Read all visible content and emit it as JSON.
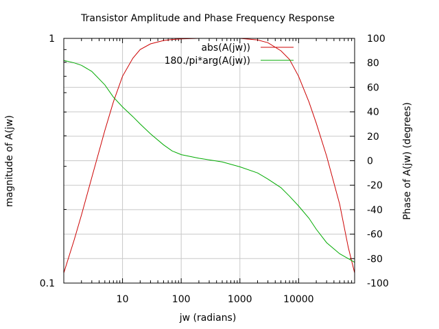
{
  "chart_data": {
    "type": "line",
    "title": "Transistor Amplitude and Phase Frequency Response",
    "xlabel": "jw (radians)",
    "ylabel": "magnitude of A(jw)",
    "y2label": "Phase of A(jw) (degrees)",
    "xscale": "log",
    "yscale": "log",
    "xlim": [
      1,
      90000
    ],
    "ylim": [
      0.1,
      1
    ],
    "y2lim": [
      -100,
      100
    ],
    "grid": true,
    "legend_position": "top-right",
    "x_ticks": [
      {
        "value": 10,
        "label": "10"
      },
      {
        "value": 100,
        "label": "100"
      },
      {
        "value": 1000,
        "label": "1000"
      },
      {
        "value": 10000,
        "label": "10000"
      }
    ],
    "y_ticks": [
      {
        "value": 0.1,
        "label": "0.1"
      },
      {
        "value": 1,
        "label": "1"
      }
    ],
    "y2_ticks": [
      {
        "value": 100,
        "label": "100"
      },
      {
        "value": 80,
        "label": "80"
      },
      {
        "value": 60,
        "label": "60"
      },
      {
        "value": 40,
        "label": "40"
      },
      {
        "value": 20,
        "label": "20"
      },
      {
        "value": 0,
        "label": "0"
      },
      {
        "value": -20,
        "label": "-20"
      },
      {
        "value": -40,
        "label": "-40"
      },
      {
        "value": -60,
        "label": "-60"
      },
      {
        "value": -80,
        "label": "-80"
      },
      {
        "value": -100,
        "label": "-100"
      }
    ],
    "series": [
      {
        "name": "abs(A(jw))",
        "axis": "left",
        "color": "#cc0000",
        "points": [
          [
            1,
            0.11
          ],
          [
            1.5,
            0.15
          ],
          [
            2,
            0.19
          ],
          [
            3,
            0.27
          ],
          [
            5,
            0.42
          ],
          [
            7,
            0.55
          ],
          [
            10,
            0.7
          ],
          [
            15,
            0.83
          ],
          [
            20,
            0.9
          ],
          [
            30,
            0.95
          ],
          [
            50,
            0.98
          ],
          [
            70,
            0.99
          ],
          [
            100,
            0.995
          ],
          [
            200,
            1.0
          ],
          [
            500,
            1.0
          ],
          [
            1000,
            1.0
          ],
          [
            2000,
            0.985
          ],
          [
            3000,
            0.96
          ],
          [
            5000,
            0.89
          ],
          [
            7000,
            0.82
          ],
          [
            10000,
            0.7
          ],
          [
            15000,
            0.55
          ],
          [
            20000,
            0.45
          ],
          [
            30000,
            0.33
          ],
          [
            50000,
            0.21
          ],
          [
            70000,
            0.14
          ],
          [
            90000,
            0.11
          ]
        ]
      },
      {
        "name": "180./pi*arg(A(jw))",
        "axis": "right",
        "color": "#00aa00",
        "points": [
          [
            1,
            82
          ],
          [
            1.5,
            80
          ],
          [
            2,
            78
          ],
          [
            3,
            73
          ],
          [
            5,
            62
          ],
          [
            7,
            52
          ],
          [
            10,
            44
          ],
          [
            15,
            36
          ],
          [
            20,
            30
          ],
          [
            30,
            22
          ],
          [
            50,
            13
          ],
          [
            70,
            8
          ],
          [
            100,
            5
          ],
          [
            200,
            2
          ],
          [
            500,
            -1
          ],
          [
            1000,
            -5
          ],
          [
            2000,
            -10
          ],
          [
            3000,
            -15
          ],
          [
            5000,
            -22
          ],
          [
            7000,
            -29
          ],
          [
            10000,
            -37
          ],
          [
            15000,
            -47
          ],
          [
            20000,
            -56
          ],
          [
            30000,
            -67
          ],
          [
            50000,
            -76
          ],
          [
            70000,
            -80
          ],
          [
            90000,
            -83
          ]
        ]
      }
    ]
  }
}
